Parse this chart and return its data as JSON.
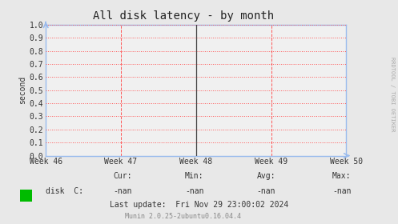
{
  "title": "All disk latency - by month",
  "ylabel": "second",
  "ylim": [
    0.0,
    1.0
  ],
  "yticks": [
    0.0,
    0.1,
    0.2,
    0.3,
    0.4,
    0.5,
    0.6,
    0.7,
    0.8,
    0.9,
    1.0
  ],
  "xtick_labels": [
    "Week 46",
    "Week 47",
    "Week 48",
    "Week 49",
    "Week 50"
  ],
  "xtick_positions": [
    0,
    0.25,
    0.5,
    0.75,
    1.0
  ],
  "vline_positions": [
    0,
    0.25,
    0.5,
    0.75,
    1.0
  ],
  "solid_vline": 0.5,
  "grid_color": "#ff5555",
  "bg_color": "#e8e8e8",
  "plot_bg_color": "#f0f0f0",
  "legend_label": "disk  C:",
  "legend_color": "#00bb00",
  "cur_val": "-nan",
  "min_val": "-nan",
  "avg_val": "-nan",
  "max_val": "-nan",
  "last_update": "Last update:  Fri Nov 29 23:00:02 2024",
  "footer": "Munin 2.0.25-2ubuntu0.16.04.4",
  "rrdtool_text": "RRDTOOL / TOBI OETIKER",
  "title_fontsize": 10,
  "axis_fontsize": 7,
  "legend_fontsize": 7,
  "footer_fontsize": 6
}
